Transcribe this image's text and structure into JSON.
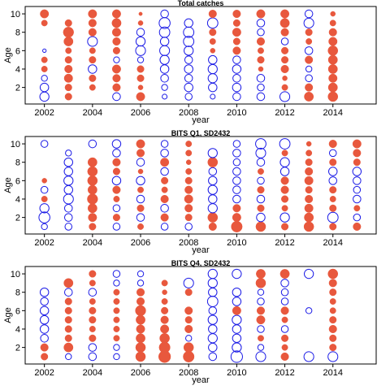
{
  "legend": {
    "positive_color": "#e8583d",
    "negative_color": "#1a1ae6",
    "positive_label": "",
    "negative_label": ""
  },
  "chart_data": [
    {
      "type": "scatter",
      "title": "Total catches",
      "xlabel": "year",
      "ylabel": "Age",
      "xlim": [
        2001.2,
        2015.8
      ],
      "ylim": [
        0.2,
        10.8
      ],
      "xticks": [
        2002,
        2004,
        2006,
        2008,
        2010,
        2012,
        2014
      ],
      "yticks": [
        2,
        4,
        6,
        8,
        10
      ],
      "ages": [
        1,
        2,
        3,
        4,
        5,
        6,
        7,
        8,
        9,
        10
      ],
      "years": [
        2002,
        2003,
        2004,
        2005,
        2006,
        2007,
        2008,
        2009,
        2010,
        2011,
        2012,
        2013,
        2014
      ],
      "residuals": [
        [
          -0.7,
          -0.6,
          -0.3,
          0.3,
          0.3,
          -0.1,
          0.0,
          0.0,
          0.3,
          0.6
        ],
        [
          0.4,
          0.4,
          0.6,
          0.5,
          0.4,
          0.3,
          0.7,
          0.9,
          0.4,
          0.0
        ],
        [
          0.0,
          0.3,
          0.4,
          -0.6,
          0.4,
          0.3,
          -0.8,
          0.5,
          0.5,
          0.6
        ],
        [
          -0.5,
          0.5,
          0.5,
          0.6,
          -0.3,
          0.4,
          0.5,
          0.6,
          0.7,
          0.6
        ],
        [
          0.6,
          0.2,
          0.4,
          0.4,
          -0.3,
          -0.8,
          -0.7,
          -0.5,
          0.2,
          0.1
        ],
        [
          -0.2,
          -0.3,
          -0.5,
          -0.6,
          -0.7,
          -0.8,
          -0.6,
          -0.9,
          -1.0,
          -0.5
        ],
        [
          -0.4,
          -0.6,
          -0.5,
          -0.6,
          -0.5,
          -0.7,
          -0.9,
          -0.9,
          -0.6,
          0.0
        ],
        [
          -0.2,
          -0.6,
          -0.7,
          -0.7,
          -0.6,
          0.2,
          0.3,
          0.4,
          -0.9,
          0.5
        ],
        [
          -0.5,
          -0.6,
          -0.5,
          -0.6,
          -0.5,
          0.5,
          0.4,
          0.6,
          0.4,
          0.5
        ],
        [
          -0.5,
          -0.4,
          -0.5,
          0.2,
          0.4,
          0.3,
          0.5,
          -0.4,
          -0.5,
          0.6
        ],
        [
          -0.8,
          0.3,
          0.2,
          0.5,
          0.4,
          0.4,
          -0.4,
          0.5,
          0.7,
          0.6
        ],
        [
          0.7,
          0.5,
          -0.4,
          -0.3,
          0.5,
          -0.5,
          0.3,
          0.4,
          -0.8,
          -0.5
        ],
        [
          0.8,
          0.7,
          0.6,
          0.7,
          0.7,
          0.8,
          0.6,
          0.5,
          0.3,
          0.2
        ]
      ]
    },
    {
      "type": "scatter",
      "title": "BITS Q1, SD2432",
      "xlabel": "year",
      "ylabel": "Age",
      "xlim": [
        2001.2,
        2015.8
      ],
      "ylim": [
        0.2,
        10.8
      ],
      "xticks": [
        2002,
        2004,
        2006,
        2008,
        2010,
        2012,
        2014
      ],
      "yticks": [
        2,
        4,
        6,
        8,
        10
      ],
      "ages": [
        1,
        2,
        3,
        4,
        5,
        6,
        7,
        8,
        9,
        10
      ],
      "years": [
        2002,
        2003,
        2004,
        2005,
        2006,
        2007,
        2008,
        2009,
        2010,
        2011,
        2012,
        2013,
        2014,
        2015
      ],
      "residuals": [
        [
          -0.3,
          -1.0,
          -0.7,
          0.3,
          -0.4,
          0.2,
          0.0,
          0.0,
          0.0,
          -0.4
        ],
        [
          -0.4,
          -0.5,
          -0.5,
          -0.8,
          -0.6,
          -0.7,
          -0.6,
          -0.6,
          -0.3,
          0.0
        ],
        [
          0.4,
          0.6,
          0.7,
          0.9,
          0.7,
          0.8,
          0.8,
          0.7,
          0.0,
          -0.5
        ],
        [
          -0.4,
          0.4,
          -0.4,
          0.3,
          0.5,
          -0.6,
          0.4,
          0.5,
          -0.5,
          -0.6
        ],
        [
          0.3,
          -0.5,
          0.4,
          -0.5,
          0.3,
          -0.6,
          0.2,
          -0.5,
          0.5,
          0.6
        ],
        [
          -0.4,
          0.5,
          -0.5,
          0.5,
          0.3,
          0.4,
          -0.5,
          0.6,
          -0.5,
          -0.4
        ],
        [
          -0.4,
          0.4,
          0.5,
          0.6,
          0.5,
          0.4,
          0.3,
          0.2,
          0.3,
          0.3
        ],
        [
          0.5,
          0.8,
          -0.7,
          -0.6,
          -0.7,
          -0.6,
          -0.5,
          0.8,
          -0.7,
          0.0
        ],
        [
          1.0,
          0.6,
          0.5,
          -0.5,
          -0.5,
          -0.5,
          -0.5,
          -0.4,
          -0.5,
          -0.4
        ],
        [
          0.8,
          -0.6,
          0.4,
          -0.5,
          0.4,
          -0.4,
          0.3,
          -0.5,
          -0.8,
          -0.9
        ],
        [
          0.4,
          -0.7,
          0.3,
          0.4,
          0.5,
          0.5,
          -0.6,
          -0.7,
          0.3,
          -0.9
        ],
        [
          0.8,
          0.7,
          0.6,
          0.5,
          0.4,
          0.6,
          0.5,
          0.4,
          0.3,
          0.2
        ],
        [
          0.4,
          -0.9,
          0.4,
          0.3,
          0.4,
          -0.5,
          -0.6,
          0.4,
          -0.4,
          0.5
        ],
        [
          0.5,
          -0.4,
          0.3,
          -0.5,
          -0.4,
          -0.5,
          -0.6,
          0.4,
          0.5,
          0.6
        ]
      ]
    },
    {
      "type": "scatter",
      "title": "BITS Q4, SD2432",
      "xlabel": "year",
      "ylabel": "Age",
      "xlim": [
        2001.2,
        2015.8
      ],
      "ylim": [
        0.2,
        10.8
      ],
      "xticks": [
        2002,
        2004,
        2006,
        2008,
        2010,
        2012,
        2014
      ],
      "yticks": [
        2,
        4,
        6,
        8,
        10
      ],
      "ages": [
        1,
        2,
        3,
        4,
        5,
        6,
        7,
        8,
        9,
        10
      ],
      "years": [
        2002,
        2003,
        2004,
        2005,
        2006,
        2007,
        2008,
        2009,
        2010,
        2011,
        2012,
        2013,
        2014
      ],
      "residuals": [
        [
          0.4,
          0.5,
          -0.5,
          -0.6,
          -0.6,
          -0.6,
          -0.5,
          -0.6,
          0.0,
          0.0
        ],
        [
          -0.3,
          0.7,
          0.4,
          0.4,
          0.4,
          0.4,
          0.4,
          -0.5,
          0.7,
          0.0
        ],
        [
          -0.5,
          -0.5,
          0.4,
          0.3,
          0.4,
          0.4,
          0.3,
          -0.5,
          0.3,
          0.4
        ],
        [
          -0.3,
          -0.3,
          0.3,
          0.3,
          0.3,
          0.3,
          0.3,
          0.3,
          -0.3,
          -0.4
        ],
        [
          0.8,
          0.8,
          0.7,
          0.6,
          0.7,
          0.9,
          0.5,
          0.5,
          -0.3,
          -0.3
        ],
        [
          1.2,
          1.0,
          0.8,
          0.6,
          0.5,
          0.4,
          0.3,
          0.2,
          0.3,
          0.0
        ],
        [
          1.0,
          0.8,
          -0.3,
          0.5,
          0.4,
          0.5,
          0.0,
          0.4,
          -0.8,
          0.0
        ],
        [
          -0.5,
          -0.6,
          -0.7,
          -0.6,
          -0.7,
          -0.5,
          -0.9,
          -0.6,
          -0.7,
          -0.7
        ],
        [
          -1.1,
          -0.7,
          -0.6,
          -0.6,
          -0.7,
          0.6,
          -0.6,
          -0.6,
          0.0,
          -0.7
        ],
        [
          -0.8,
          -0.3,
          0.3,
          -0.4,
          0.6,
          0.5,
          -0.4,
          -0.3,
          0.8,
          0.7
        ],
        [
          0.5,
          0.3,
          0.4,
          -0.4,
          0.3,
          0.5,
          -0.4,
          -0.4,
          -0.5,
          0.7
        ],
        [
          -0.8,
          0.0,
          0.0,
          0.0,
          0.0,
          -0.3,
          0.0,
          0.0,
          0.0,
          -0.7
        ],
        [
          -0.8,
          0.4,
          0.4,
          0.5,
          0.4,
          0.3,
          0.3,
          0.4,
          0.5,
          0.8
        ]
      ]
    }
  ]
}
